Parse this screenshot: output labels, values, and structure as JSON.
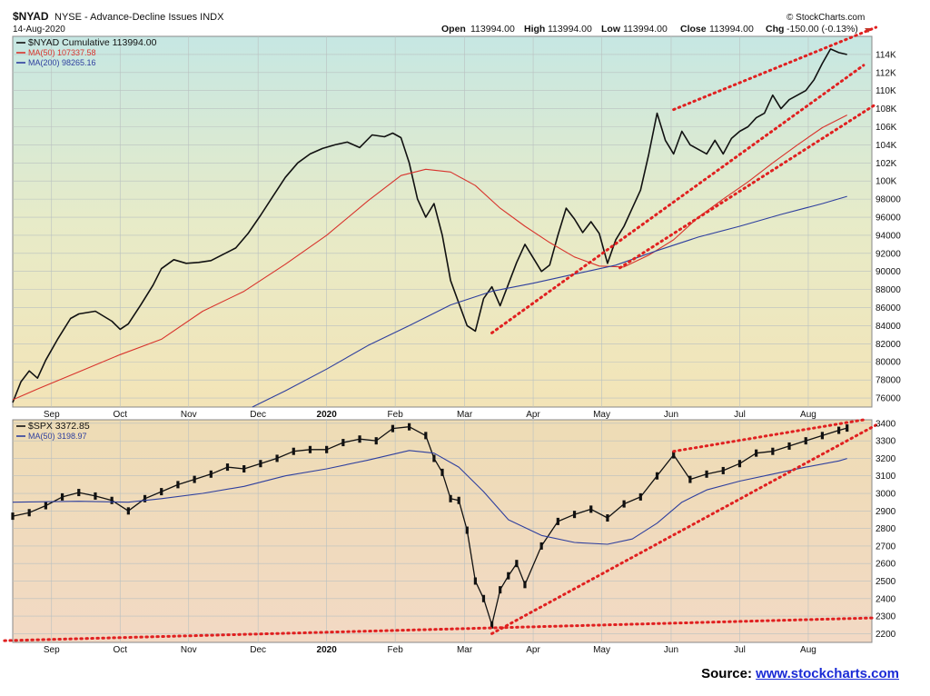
{
  "header": {
    "symbol": "$NYAD",
    "name": "NYSE - Advance-Decline Issues INDX",
    "date": "14-Aug-2020",
    "ohlc": {
      "open_label": "Open",
      "open": "113994.00",
      "high_label": "High",
      "high": "113994.00",
      "low_label": "Low",
      "low": "113994.00",
      "close_label": "Close",
      "close": "113994.00",
      "chg_label": "Chg",
      "chg": "-150.00 (-0.13%)"
    },
    "watermark": "© StockCharts.com"
  },
  "source": {
    "label": "Source:",
    "link": "www.stockcharts.com"
  },
  "colors": {
    "price": "#111111",
    "ma50_top": "#d8332c",
    "ma200": "#2e3f9e",
    "ma50_bottom": "#2e3f9e",
    "trend": "#e02020",
    "grid": "#b9c0c0"
  },
  "x_axis": {
    "labels": [
      "Sep",
      "Oct",
      "Nov",
      "Dec",
      "2020",
      "Feb",
      "Mar",
      "Apr",
      "May",
      "Jun",
      "Jul",
      "Aug"
    ],
    "label_x": [
      2019.667,
      2019.75,
      2019.833,
      2019.917,
      2020.0,
      2020.083,
      2020.167,
      2020.25,
      2020.333,
      2020.417,
      2020.5,
      2020.583
    ],
    "range": [
      2019.62,
      2020.66
    ]
  },
  "chart_data": [
    {
      "type": "line",
      "panel": "top",
      "legend": [
        {
          "name": "$NYAD Cumulative",
          "value": "113994.00"
        },
        {
          "name": "MA(50)",
          "value": "107337.58"
        },
        {
          "name": "MA(200)",
          "value": "98265.16"
        }
      ],
      "ylim": [
        75000,
        116000
      ],
      "y_ticks": [
        76000,
        78000,
        80000,
        82000,
        84000,
        86000,
        88000,
        90000,
        92000,
        94000,
        96000,
        98000,
        100000,
        102000,
        104000,
        106000,
        108000,
        110000,
        112000,
        114000
      ],
      "y_tick_labels": [
        "76000",
        "78000",
        "80000",
        "82000",
        "84000",
        "86000",
        "88000",
        "90000",
        "92000",
        "94000",
        "96000",
        "98000",
        "100K",
        "102K",
        "104K",
        "106K",
        "108K",
        "110K",
        "112K",
        "114K"
      ],
      "series": [
        {
          "name": "$NYAD Cumulative",
          "x": [
            2019.62,
            2019.63,
            2019.64,
            2019.65,
            2019.66,
            2019.675,
            2019.69,
            2019.7,
            2019.72,
            2019.74,
            2019.75,
            2019.76,
            2019.775,
            2019.79,
            2019.8,
            2019.815,
            2019.83,
            2019.845,
            2019.86,
            2019.875,
            2019.89,
            2019.905,
            2019.92,
            2019.935,
            2019.95,
            2019.965,
            2019.98,
            2019.995,
            2020.01,
            2020.025,
            2020.04,
            2020.055,
            2020.07,
            2020.08,
            2020.09,
            2020.1,
            2020.11,
            2020.12,
            2020.13,
            2020.14,
            2020.15,
            2020.16,
            2020.17,
            2020.18,
            2020.19,
            2020.2,
            2020.21,
            2020.22,
            2020.23,
            2020.24,
            2020.25,
            2020.26,
            2020.27,
            2020.28,
            2020.29,
            2020.3,
            2020.31,
            2020.32,
            2020.33,
            2020.34,
            2020.35,
            2020.36,
            2020.37,
            2020.38,
            2020.39,
            2020.4,
            2020.41,
            2020.42,
            2020.43,
            2020.44,
            2020.45,
            2020.46,
            2020.47,
            2020.48,
            2020.49,
            2020.5,
            2020.51,
            2020.52,
            2020.53,
            2020.54,
            2020.55,
            2020.56,
            2020.57,
            2020.58,
            2020.59,
            2020.6,
            2020.61,
            2020.62,
            2020.63
          ],
          "values": [
            75500,
            77800,
            79000,
            78200,
            80200,
            82600,
            84800,
            85300,
            85600,
            84500,
            83600,
            84200,
            86300,
            88500,
            90300,
            91300,
            90900,
            91000,
            91200,
            91900,
            92600,
            94200,
            96200,
            98300,
            100400,
            102000,
            103000,
            103600,
            104000,
            104300,
            103700,
            105100,
            104900,
            105300,
            104800,
            102000,
            98000,
            96000,
            97500,
            94000,
            89000,
            86500,
            84000,
            83400,
            87000,
            88300,
            86200,
            88600,
            91000,
            93000,
            91500,
            90000,
            90700,
            94000,
            97000,
            95800,
            94300,
            95500,
            94200,
            90900,
            93500,
            95000,
            97000,
            99000,
            103000,
            107500,
            104500,
            103000,
            105500,
            104000,
            103500,
            103000,
            104500,
            103000,
            104700,
            105500,
            106000,
            107000,
            107500,
            109500,
            108000,
            109000,
            109500,
            110000,
            111200,
            113000,
            114600,
            114200,
            113994
          ]
        },
        {
          "name": "MA(50)",
          "x": [
            2019.62,
            2019.65,
            2019.7,
            2019.75,
            2019.8,
            2019.85,
            2019.9,
            2019.95,
            2020.0,
            2020.05,
            2020.09,
            2020.12,
            2020.15,
            2020.18,
            2020.21,
            2020.24,
            2020.27,
            2020.3,
            2020.33,
            2020.36,
            2020.39,
            2020.42,
            2020.45,
            2020.48,
            2020.51,
            2020.54,
            2020.57,
            2020.6,
            2020.63
          ],
          "values": [
            75800,
            77000,
            78900,
            80800,
            82500,
            85600,
            87800,
            90800,
            94000,
            97800,
            100600,
            101300,
            101000,
            99500,
            97000,
            95000,
            93200,
            91600,
            90600,
            90500,
            91800,
            93500,
            96000,
            98000,
            99900,
            102000,
            104000,
            105900,
            107300
          ]
        },
        {
          "name": "MA(200)",
          "x": [
            2019.91,
            2019.95,
            2020.0,
            2020.05,
            2020.1,
            2020.15,
            2020.2,
            2020.25,
            2020.3,
            2020.35,
            2020.4,
            2020.45,
            2020.5,
            2020.55,
            2020.6,
            2020.63
          ],
          "values": [
            75000,
            76800,
            79200,
            81800,
            84000,
            86300,
            87800,
            88700,
            89700,
            90700,
            92300,
            93800,
            95000,
            96300,
            97500,
            98300
          ]
        }
      ],
      "annotations": [
        {
          "type": "trendline",
          "x": [
            2020.2,
            2020.65
          ],
          "values": [
            83200,
            112800
          ]
        },
        {
          "type": "trendline",
          "x": [
            2020.42,
            2020.665
          ],
          "values": [
            107900,
            117000
          ]
        },
        {
          "type": "trendline",
          "x": [
            2020.355,
            2020.665
          ],
          "values": [
            90400,
            108500
          ]
        }
      ]
    },
    {
      "type": "candlestick",
      "panel": "bottom",
      "legend": [
        {
          "name": "$SPX",
          "value": "3372.85"
        },
        {
          "name": "MA(50)",
          "value": "3198.97"
        }
      ],
      "ylim": [
        2150,
        3420
      ],
      "y_ticks": [
        2200,
        2300,
        2400,
        2500,
        2600,
        2700,
        2800,
        2900,
        3000,
        3100,
        3200,
        3300,
        3400
      ],
      "y_tick_labels": [
        "2200",
        "2300",
        "2400",
        "2500",
        "2600",
        "2700",
        "2800",
        "2900",
        "3000",
        "3100",
        "3200",
        "3300",
        "3400"
      ],
      "series": [
        {
          "name": "$SPX",
          "x": [
            2019.62,
            2019.64,
            2019.66,
            2019.68,
            2019.7,
            2019.72,
            2019.74,
            2019.76,
            2019.78,
            2019.8,
            2019.82,
            2019.84,
            2019.86,
            2019.88,
            2019.9,
            2019.92,
            2019.94,
            2019.96,
            2019.98,
            2020.0,
            2020.02,
            2020.04,
            2020.06,
            2020.08,
            2020.1,
            2020.12,
            2020.13,
            2020.14,
            2020.15,
            2020.16,
            2020.17,
            2020.18,
            2020.19,
            2020.2,
            2020.21,
            2020.22,
            2020.23,
            2020.24,
            2020.26,
            2020.28,
            2020.3,
            2020.32,
            2020.34,
            2020.36,
            2020.38,
            2020.4,
            2020.42,
            2020.44,
            2020.46,
            2020.48,
            2020.5,
            2020.52,
            2020.54,
            2020.56,
            2020.58,
            2020.6,
            2020.62,
            2020.63
          ],
          "values": [
            2870,
            2890,
            2930,
            2980,
            3005,
            2985,
            2960,
            2900,
            2970,
            3010,
            3050,
            3080,
            3110,
            3150,
            3140,
            3170,
            3200,
            3240,
            3250,
            3250,
            3290,
            3310,
            3300,
            3370,
            3380,
            3330,
            3200,
            3120,
            2970,
            2960,
            2790,
            2500,
            2400,
            2250,
            2450,
            2530,
            2600,
            2480,
            2700,
            2840,
            2880,
            2910,
            2860,
            2940,
            2980,
            3100,
            3220,
            3080,
            3110,
            3130,
            3170,
            3230,
            3240,
            3270,
            3300,
            3330,
            3360,
            3372.85
          ]
        },
        {
          "name": "MA(50)",
          "x": [
            2019.62,
            2019.7,
            2019.76,
            2019.8,
            2019.85,
            2019.9,
            2019.95,
            2020.0,
            2020.05,
            2020.1,
            2020.13,
            2020.16,
            2020.19,
            2020.22,
            2020.26,
            2020.3,
            2020.34,
            2020.37,
            2020.4,
            2020.43,
            2020.46,
            2020.5,
            2020.54,
            2020.58,
            2020.62,
            2020.63
          ],
          "values": [
            2950,
            2955,
            2950,
            2970,
            3000,
            3040,
            3100,
            3140,
            3190,
            3245,
            3230,
            3150,
            3010,
            2850,
            2760,
            2720,
            2710,
            2740,
            2830,
            2950,
            3020,
            3070,
            3110,
            3150,
            3185,
            3198.97
          ]
        }
      ],
      "annotations": [
        {
          "type": "trendline",
          "x": [
            2019.61,
            2020.665
          ],
          "values": [
            2160,
            2290
          ]
        },
        {
          "type": "trendline",
          "x": [
            2020.2,
            2020.665
          ],
          "values": [
            2200,
            3390
          ]
        },
        {
          "type": "trendline",
          "x": [
            2020.42,
            2020.65
          ],
          "values": [
            3240,
            3420
          ]
        }
      ]
    }
  ]
}
